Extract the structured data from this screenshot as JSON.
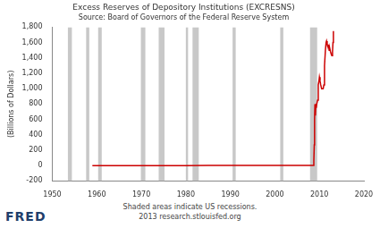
{
  "chart_data": {
    "type": "line",
    "title": "Excess Reserves of Depository Institutions (EXCRESNS)",
    "subtitle": "Source: Board of Governors of the Federal Reserve System",
    "y_label": "(Billions of Dollars)",
    "annotations": [
      "Shaded areas indicate US recessions.",
      "2013 research.stlouisfed.org",
      "FRED"
    ],
    "color": "#cc0000",
    "x": [
      1959,
      1965,
      1970,
      1975,
      1980,
      1985,
      1990,
      1995,
      2000,
      2005,
      2008.6,
      2008.75,
      2008.85,
      2008.92,
      2009.0,
      2009.1,
      2009.2,
      2009.3,
      2009.4,
      2009.6,
      2009.75,
      2009.9,
      2010.0,
      2010.15,
      2010.3,
      2010.5,
      2010.7,
      2010.85,
      2011.0,
      2011.15,
      2011.35,
      2011.5,
      2011.6,
      2011.75,
      2011.9,
      2012.05,
      2012.2,
      2012.35,
      2012.5,
      2012.65,
      2012.8,
      2012.95,
      2013.05,
      2013.15
    ],
    "values": [
      0.4,
      0.4,
      0.2,
      0.3,
      0.4,
      1,
      1,
      1,
      1,
      1.7,
      2,
      60,
      270,
      600,
      800,
      650,
      800,
      750,
      800,
      850,
      1050,
      1100,
      1150,
      1100,
      1050,
      1000,
      1000,
      1000,
      1050,
      1300,
      1500,
      1600,
      1620,
      1580,
      1550,
      1560,
      1500,
      1520,
      1480,
      1450,
      1430,
      1480,
      1600,
      1750
    ],
    "recessions": [
      [
        1953.5,
        1954.4
      ],
      [
        1957.6,
        1958.3
      ],
      [
        1960.3,
        1961.1
      ],
      [
        1969.9,
        1970.9
      ],
      [
        1973.9,
        1975.2
      ],
      [
        1980.0,
        1980.5
      ],
      [
        1981.5,
        1982.9
      ],
      [
        1990.5,
        1991.2
      ],
      [
        2001.2,
        2001.9
      ],
      [
        2007.9,
        2009.5
      ]
    ],
    "xlim": [
      1950,
      2020
    ],
    "xticks": [
      1950,
      1960,
      1970,
      1980,
      1990,
      2000,
      2010,
      2020
    ],
    "ylim": [
      -200,
      1800
    ],
    "yticks": [
      -200,
      0,
      200,
      400,
      600,
      800,
      {
        "value": 1000,
        "label": "1,000"
      },
      {
        "value": 1200,
        "label": "1,200"
      },
      {
        "value": 1400,
        "label": "1,400"
      },
      {
        "value": 1600,
        "label": "1,600"
      },
      {
        "value": 1800,
        "label": "1,800"
      }
    ],
    "grid": false
  }
}
